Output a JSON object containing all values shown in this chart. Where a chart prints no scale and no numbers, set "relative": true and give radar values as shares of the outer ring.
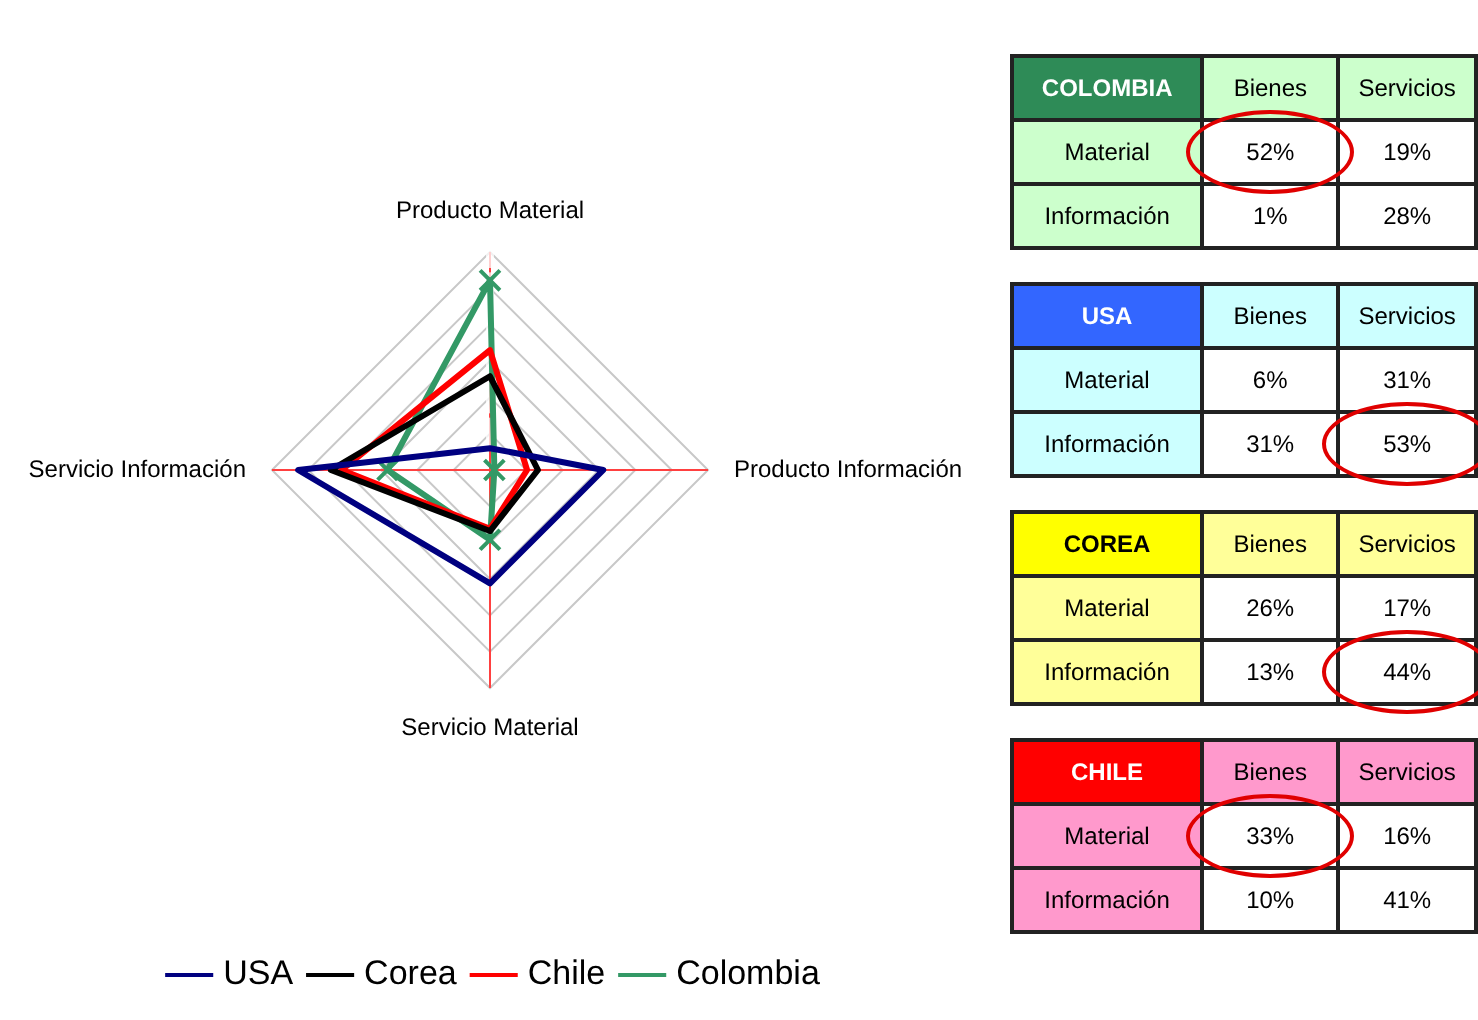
{
  "chart_data": [
    {
      "type": "radar",
      "relative": true,
      "categories": [
        "Producto Material",
        "Producto Información",
        "Servicio Material",
        "Servicio Información"
      ],
      "grid": true,
      "legend": "bottom",
      "series": [
        {
          "name": "USA",
          "color": "#000080",
          "values": [
            0.1,
            0.52,
            0.52,
            0.88
          ],
          "marker": "none"
        },
        {
          "name": "Corea",
          "color": "#000000",
          "values": [
            0.43,
            0.22,
            0.28,
            0.73
          ],
          "marker": "none"
        },
        {
          "name": "Chile",
          "color": "#ff0000",
          "values": [
            0.55,
            0.17,
            0.27,
            0.68
          ],
          "marker": "none"
        },
        {
          "name": "Colombia",
          "color": "#339966",
          "values": [
            0.87,
            0.02,
            0.32,
            0.47
          ],
          "marker": "cross"
        }
      ]
    },
    {
      "type": "other",
      "title": "COLOMBIA",
      "categories": [
        "Bienes",
        "Servicios"
      ],
      "y_categories": [
        "Material",
        "Información"
      ],
      "cell_labels": [
        [
          "52%",
          "19%"
        ],
        [
          "1%",
          "28%"
        ]
      ],
      "colors": [
        "#ccffcc",
        "#ccffcc"
      ]
    },
    {
      "type": "other",
      "title": "USA",
      "categories": [
        "Bienes",
        "Servicios"
      ],
      "y_categories": [
        "Material",
        "Información"
      ],
      "cell_labels": [
        [
          "6%",
          "31%"
        ],
        [
          "31%",
          "53%"
        ]
      ],
      "colors": [
        "#ccffff",
        "#ccffff"
      ]
    },
    {
      "type": "other",
      "title": "COREA",
      "categories": [
        "Bienes",
        "Servicios"
      ],
      "y_categories": [
        "Material",
        "Información"
      ],
      "cell_labels": [
        [
          "26%",
          "17%"
        ],
        [
          "13%",
          "44%"
        ]
      ],
      "colors": [
        "#ffff99",
        "#ffff99"
      ]
    },
    {
      "type": "other",
      "title": "CHILE",
      "categories": [
        "Bienes",
        "Servicios"
      ],
      "y_categories": [
        "Material",
        "Información"
      ],
      "cell_labels": [
        [
          "33%",
          "16%"
        ],
        [
          "10%",
          "41%"
        ]
      ],
      "colors": [
        "#ff99cc",
        "#ff99cc"
      ]
    }
  ]
}
